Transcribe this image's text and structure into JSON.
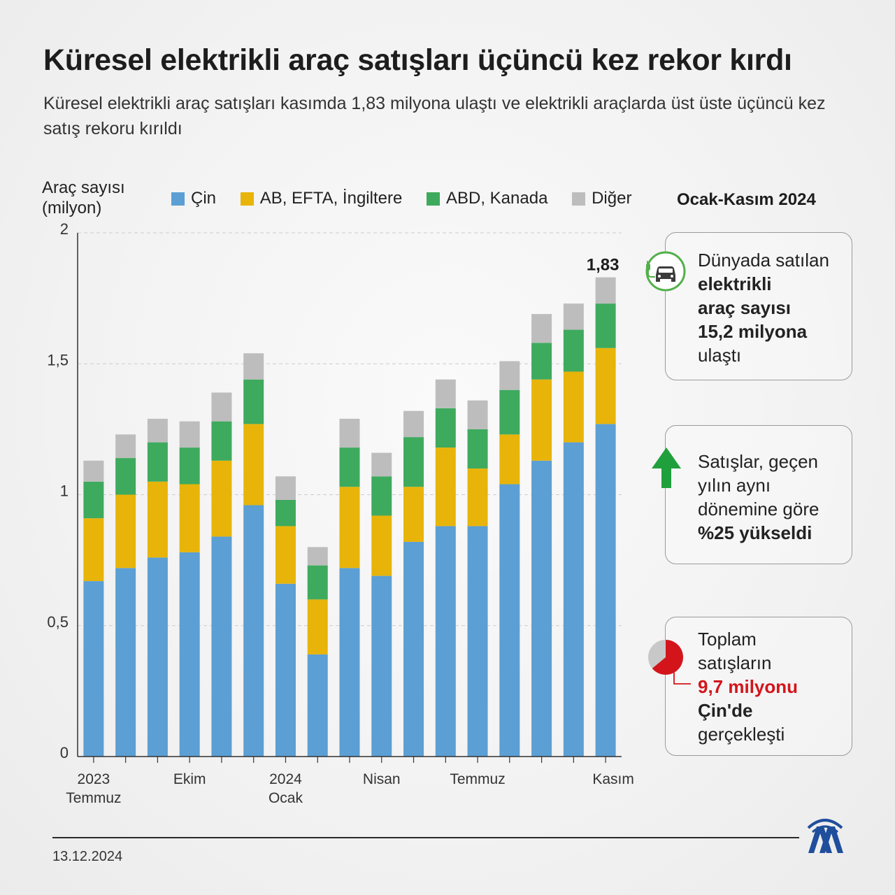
{
  "header": {
    "title": "Küresel elektrikli araç satışları üçüncü kez rekor kırdı",
    "subtitle": "Küresel elektrikli araç satışları kasımda 1,83 milyona ulaştı ve elektrikli araçlarda üst üste üçüncü kez satış rekoru kırıldı"
  },
  "chart_data": {
    "type": "bar",
    "stacked": true,
    "ylabel_line1": "Araç sayısı",
    "ylabel_line2": "(milyon)",
    "ylim": [
      0,
      2
    ],
    "yticks": [
      {
        "value": 0,
        "label": "0"
      },
      {
        "value": 0.5,
        "label": "0,5"
      },
      {
        "value": 1,
        "label": "1"
      },
      {
        "value": 1.5,
        "label": "1,5"
      },
      {
        "value": 2,
        "label": "2"
      }
    ],
    "categories": [
      "2023-07",
      "2023-08",
      "2023-09",
      "2023-10",
      "2023-11",
      "2023-12",
      "2024-01",
      "2024-02",
      "2024-03",
      "2024-04",
      "2024-05",
      "2024-06",
      "2024-07",
      "2024-08",
      "2024-09",
      "2024-10",
      "2024-11"
    ],
    "xtick_labels": [
      {
        "index": 0,
        "line1": "2023",
        "line2": "Temmuz"
      },
      {
        "index": 3,
        "line1": "Ekim",
        "line2": ""
      },
      {
        "index": 6,
        "line1": "2024",
        "line2": "Ocak"
      },
      {
        "index": 9,
        "line1": "Nisan",
        "line2": ""
      },
      {
        "index": 12,
        "line1": "Temmuz",
        "line2": ""
      },
      {
        "index": 16,
        "line1": "Kasım",
        "line2": ""
      }
    ],
    "series": [
      {
        "name": "Çin",
        "color": "#5b9fd4",
        "values": [
          0.67,
          0.72,
          0.76,
          0.78,
          0.84,
          0.96,
          0.66,
          0.39,
          0.72,
          0.69,
          0.82,
          0.88,
          0.88,
          1.04,
          1.13,
          1.2,
          1.27
        ]
      },
      {
        "name": "AB, EFTA, İngiltere",
        "color": "#e8b40a",
        "values": [
          0.24,
          0.28,
          0.29,
          0.26,
          0.29,
          0.31,
          0.22,
          0.21,
          0.31,
          0.23,
          0.21,
          0.3,
          0.22,
          0.19,
          0.31,
          0.27,
          0.29
        ]
      },
      {
        "name": "ABD, Kanada",
        "color": "#3eaa5d",
        "values": [
          0.14,
          0.14,
          0.15,
          0.14,
          0.15,
          0.17,
          0.1,
          0.13,
          0.15,
          0.15,
          0.19,
          0.15,
          0.15,
          0.17,
          0.14,
          0.16,
          0.17
        ]
      },
      {
        "name": "Diğer",
        "color": "#bdbdbd",
        "values": [
          0.08,
          0.09,
          0.09,
          0.1,
          0.11,
          0.1,
          0.09,
          0.07,
          0.11,
          0.09,
          0.1,
          0.11,
          0.11,
          0.11,
          0.11,
          0.1,
          0.1
        ]
      }
    ],
    "totals": [
      1.13,
      1.23,
      1.29,
      1.28,
      1.39,
      1.54,
      1.07,
      0.8,
      1.29,
      1.16,
      1.32,
      1.44,
      1.36,
      1.51,
      1.69,
      1.73,
      1.83
    ],
    "annotation": {
      "index": 16,
      "label": "1,83"
    },
    "grid": true,
    "legend_position": "top"
  },
  "panel": {
    "title": "Ocak-Kasım 2024",
    "card1": {
      "icon": "electric-car-icon",
      "line1": "Dünyada satılan",
      "line2": "elektrikli",
      "line3": "araç sayısı",
      "line4": "15,2 milyona",
      "line5": "ulaştı"
    },
    "card2": {
      "icon": "arrow-up-icon",
      "line1": "Satışlar, geçen",
      "line2": "yılın aynı",
      "line3": "dönemine göre",
      "line4": "%25 yükseldi"
    },
    "card3": {
      "icon": "pie-chart-icon",
      "pie_share": 0.64,
      "line1": "Toplam",
      "line2": "satışların",
      "line3": "9,7 milyonu",
      "line4": "Çin'de",
      "line5": "gerçekleşti"
    }
  },
  "footer": {
    "date": "13.12.2024",
    "logo": "aa-logo-icon",
    "logo_color": "#1f4e9c"
  }
}
